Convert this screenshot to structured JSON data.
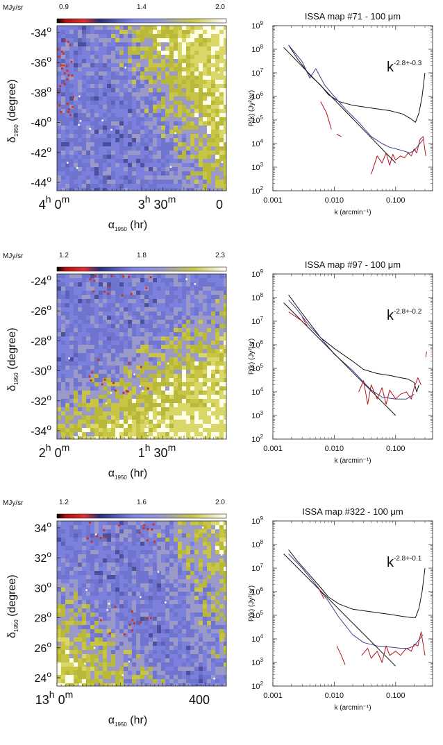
{
  "chart_data": [
    {
      "type": "heatmap",
      "colorbar": {
        "unit": "MJy/sr",
        "ticks": [
          "0.9",
          "1.4",
          "2.0"
        ]
      },
      "yticks": [
        "-34",
        "-36",
        "-38",
        "-40",
        "-42",
        "-44"
      ],
      "ylabel": {
        "main": "δ",
        "sub": "1950",
        "tail": "(degree)"
      },
      "xlabel": {
        "main": "α",
        "sub": "1950",
        "tail": "(hr)"
      },
      "xticks": [
        {
          "h": "4",
          "m": "0"
        },
        {
          "h": "3",
          "m": "30"
        },
        {
          "h": "",
          "m": "",
          "plain": "0"
        }
      ]
    },
    {
      "type": "line",
      "title": "ISSA map #71 - 100 μm",
      "annotation": {
        "base": "k",
        "exp": "-2.8+-0.3"
      },
      "ylabel": "P(k) (Jy²/sr)",
      "xlabel": "k (arcmin⁻¹)",
      "xscale": "log",
      "yscale": "log",
      "xlim": [
        0.001,
        0.4
      ],
      "ylim": [
        100,
        1000000000
      ],
      "xticks": [
        "0.001",
        "0.010",
        "0.100"
      ],
      "yticks": [
        {
          "b": "10",
          "e": "2"
        },
        {
          "b": "10",
          "e": "3"
        },
        {
          "b": "10",
          "e": "4"
        },
        {
          "b": "10",
          "e": "5"
        },
        {
          "b": "10",
          "e": "6"
        },
        {
          "b": "10",
          "e": "7"
        },
        {
          "b": "10",
          "e": "8"
        },
        {
          "b": "10",
          "e": "9"
        }
      ],
      "series": [
        {
          "color": "#111111",
          "x": [
            0.0018,
            0.0025,
            0.004,
            0.006,
            0.008,
            0.012,
            0.02,
            0.04,
            0.08,
            0.13,
            0.18,
            0.21,
            0.24,
            0.27,
            0.3
          ],
          "y": [
            150000000,
            40000000,
            8000000,
            3000000,
            1200000,
            600000,
            420000,
            320000,
            250000,
            180000,
            110000,
            80000,
            200000,
            1000000,
            10000000
          ]
        },
        {
          "color": "#3a3f8c",
          "x": [
            0.0018,
            0.003,
            0.004,
            0.005,
            0.007,
            0.01,
            0.015,
            0.025,
            0.04,
            0.06,
            0.08,
            0.1,
            0.13,
            0.17,
            0.2,
            0.24,
            0.28
          ],
          "y": [
            150000000,
            30000000,
            6000000,
            15000000,
            3000000,
            1000000,
            300000,
            80000,
            20000,
            10000,
            7000,
            6000,
            5000,
            4000,
            5000,
            9000,
            15000
          ]
        },
        {
          "color": "#111111",
          "x": [
            0.0015,
            0.1
          ],
          "y": [
            120000000,
            1500
          ]
        },
        {
          "color": "#b3121c",
          "x": [
            0.006,
            0.0075,
            0.009
          ],
          "y": [
            600000,
            200000,
            40000
          ]
        },
        {
          "color": "#b3121c",
          "x": [
            0.011,
            0.013
          ],
          "y": [
            25000,
            20000
          ]
        },
        {
          "color": "#b3121c",
          "x": [
            0.04,
            0.05,
            0.06,
            0.07,
            0.08,
            0.09,
            0.1,
            0.12,
            0.14,
            0.16,
            0.18,
            0.2,
            0.22,
            0.25,
            0.28,
            0.31
          ],
          "y": [
            500,
            3000,
            1500,
            4000,
            1200,
            3500,
            2000,
            3000,
            2500,
            4000,
            3000,
            6000,
            4000,
            15000,
            20000,
            3000
          ]
        }
      ]
    },
    {
      "type": "heatmap",
      "colorbar": {
        "unit": "MJy/sr",
        "ticks": [
          "1.2",
          "1.8",
          "2.3"
        ]
      },
      "yticks": [
        "-24",
        "-26",
        "-28",
        "-30",
        "-32",
        "-34"
      ],
      "ylabel": {
        "main": "δ",
        "sub": "1950",
        "tail": "(degree)"
      },
      "xlabel": {
        "main": "α",
        "sub": "1950",
        "tail": "(hr)"
      },
      "xticks": [
        {
          "h": "2",
          "m": "0"
        },
        {
          "h": "1",
          "m": "30"
        }
      ]
    },
    {
      "type": "line",
      "title": "ISSA map #97 - 100 μm",
      "annotation": {
        "base": "k",
        "exp": "-2.8+-0.2"
      },
      "ylabel": "P(k) (Jy²/sr)",
      "xlabel": "k (arcmin⁻¹)",
      "xscale": "log",
      "yscale": "log",
      "xlim": [
        0.001,
        0.4
      ],
      "ylim": [
        100,
        1000000000
      ],
      "xticks": [
        "0.001",
        "0.010",
        "0.100"
      ],
      "yticks": [
        {
          "b": "10",
          "e": "2"
        },
        {
          "b": "10",
          "e": "3"
        },
        {
          "b": "10",
          "e": "4"
        },
        {
          "b": "10",
          "e": "5"
        },
        {
          "b": "10",
          "e": "6"
        },
        {
          "b": "10",
          "e": "7"
        },
        {
          "b": "10",
          "e": "8"
        },
        {
          "b": "10",
          "e": "9"
        }
      ],
      "series": [
        {
          "color": "#111111",
          "x": [
            0.0018,
            0.0025,
            0.004,
            0.006,
            0.01,
            0.02,
            0.03,
            0.05,
            0.08,
            0.12,
            0.16,
            0.2,
            0.22,
            0.24
          ],
          "y": [
            130000000,
            40000000,
            8000000,
            2000000,
            700000,
            200000,
            90000,
            60000,
            50000,
            40000,
            35000,
            25000,
            10000,
            20000
          ]
        },
        {
          "color": "#3a3f8c",
          "x": [
            0.0018,
            0.0025,
            0.004,
            0.006,
            0.01,
            0.02,
            0.04,
            0.06,
            0.1,
            0.15,
            0.2
          ],
          "y": [
            80000000,
            30000000,
            6000000,
            2000000,
            400000,
            80000,
            12000,
            6000,
            5000,
            5000,
            8000
          ]
        },
        {
          "color": "#111111",
          "x": [
            0.0015,
            0.1
          ],
          "y": [
            60000000,
            1000
          ]
        },
        {
          "color": "#b3121c",
          "x": [
            0.0018,
            0.003
          ],
          "y": [
            25000000,
            10000000
          ]
        },
        {
          "color": "#b3121c",
          "x": [
            0.003,
            0.0038
          ],
          "y": [
            15000000,
            5000000
          ]
        },
        {
          "color": "#b3121c",
          "x": [
            0.025,
            0.03,
            0.035,
            0.04,
            0.05,
            0.06,
            0.07,
            0.08,
            0.1,
            0.12,
            0.15,
            0.18,
            0.2,
            0.23,
            0.26
          ],
          "y": [
            10000,
            30000,
            3000,
            20000,
            5000,
            15000,
            3000,
            12000,
            5000,
            8000,
            10000,
            5000,
            15000,
            40000,
            20000
          ]
        },
        {
          "color": "#b3121c",
          "x": [
            0.31,
            0.32
          ],
          "y": [
            300000,
            500000
          ]
        }
      ]
    },
    {
      "type": "heatmap",
      "colorbar": {
        "unit": "MJy/sr",
        "ticks": [
          "1.2",
          "1.6",
          "2.0"
        ]
      },
      "yticks": [
        "34",
        "32",
        "30",
        "28",
        "26",
        "24"
      ],
      "ylabel": {
        "main": "δ",
        "sub": "1950",
        "tail": "(degree)"
      },
      "xlabel": {
        "main": "α",
        "sub": "1950",
        "tail": "(hr)"
      },
      "xticks": [
        {
          "h": "13",
          "m": "0"
        },
        {
          "h": "",
          "m": "",
          "plain": "400"
        }
      ]
    },
    {
      "type": "line",
      "title": "ISSA map #322 - 100 μm",
      "annotation": {
        "base": "k",
        "exp": "-2.8+-0.1"
      },
      "ylabel": "P(k) (Jy²/sr)",
      "xlabel": "k (arcmin⁻¹)",
      "xscale": "log",
      "yscale": "log",
      "xlim": [
        0.001,
        0.4
      ],
      "ylim": [
        100,
        1000000000
      ],
      "xticks": [
        "0.001",
        "0.010",
        "0.100"
      ],
      "yticks": [
        {
          "b": "10",
          "e": "2"
        },
        {
          "b": "10",
          "e": "3"
        },
        {
          "b": "10",
          "e": "4"
        },
        {
          "b": "10",
          "e": "5"
        },
        {
          "b": "10",
          "e": "6"
        },
        {
          "b": "10",
          "e": "7"
        },
        {
          "b": "10",
          "e": "8"
        },
        {
          "b": "10",
          "e": "9"
        }
      ],
      "series": [
        {
          "color": "#111111",
          "x": [
            0.0018,
            0.0025,
            0.004,
            0.006,
            0.008,
            0.012,
            0.02,
            0.04,
            0.08,
            0.13,
            0.18,
            0.21,
            0.24,
            0.27,
            0.3
          ],
          "y": [
            60000000,
            20000000,
            5000000,
            1500000,
            600000,
            300000,
            180000,
            140000,
            110000,
            90000,
            80000,
            80000,
            200000,
            1000000,
            10000000
          ]
        },
        {
          "color": "#3a3f8c",
          "x": [
            0.0018,
            0.003,
            0.005,
            0.008,
            0.012,
            0.02,
            0.03,
            0.05,
            0.08,
            0.12,
            0.16,
            0.2,
            0.24,
            0.28
          ],
          "y": [
            40000000,
            10000000,
            2000000,
            400000,
            80000,
            15000,
            7000,
            5000,
            4500,
            4000,
            4000,
            5000,
            9000,
            15000
          ]
        },
        {
          "color": "#111111",
          "x": [
            0.0015,
            0.1
          ],
          "y": [
            40000000,
            700
          ]
        },
        {
          "color": "#b3121c",
          "x": [
            0.0055,
            0.0068
          ],
          "y": [
            1500000,
            500000
          ]
        },
        {
          "color": "#b3121c",
          "x": [
            0.011,
            0.013,
            0.015
          ],
          "y": [
            5000,
            2000,
            800
          ]
        },
        {
          "color": "#b3121c",
          "x": [
            0.028,
            0.035,
            0.04,
            0.05,
            0.06,
            0.07,
            0.08,
            0.1,
            0.12,
            0.15,
            0.18,
            0.2,
            0.23,
            0.26,
            0.3
          ],
          "y": [
            2000,
            4000,
            1500,
            3000,
            1000,
            5000,
            2000,
            3000,
            2000,
            4000,
            3000,
            6000,
            5000,
            20000,
            2000
          ]
        }
      ]
    }
  ]
}
